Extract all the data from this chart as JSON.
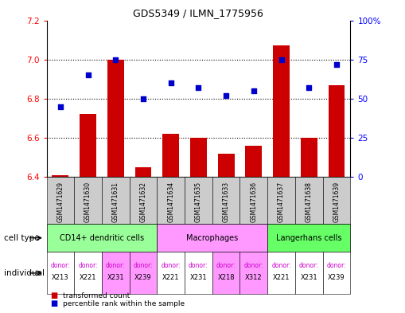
{
  "title": "GDS5349 / ILMN_1775956",
  "samples": [
    "GSM1471629",
    "GSM1471630",
    "GSM1471631",
    "GSM1471632",
    "GSM1471634",
    "GSM1471635",
    "GSM1471633",
    "GSM1471636",
    "GSM1471637",
    "GSM1471638",
    "GSM1471639"
  ],
  "bar_values": [
    6.41,
    6.72,
    7.0,
    6.45,
    6.62,
    6.6,
    6.52,
    6.56,
    7.07,
    6.6,
    6.87
  ],
  "dot_values": [
    45,
    65,
    75,
    50,
    60,
    57,
    52,
    55,
    75,
    57,
    72
  ],
  "ylim_left": [
    6.4,
    7.2
  ],
  "ylim_right": [
    0,
    100
  ],
  "yticks_left": [
    6.4,
    6.6,
    6.8,
    7.0,
    7.2
  ],
  "yticks_right": [
    0,
    25,
    50,
    75,
    100
  ],
  "ytick_labels_right": [
    "0",
    "25",
    "50",
    "75",
    "100%"
  ],
  "bar_color": "#cc0000",
  "dot_color": "#0000cc",
  "cell_types": [
    {
      "label": "CD14+ dendritic cells",
      "start": 0,
      "end": 4,
      "color": "#99ff99"
    },
    {
      "label": "Macrophages",
      "start": 4,
      "end": 8,
      "color": "#ff99ff"
    },
    {
      "label": "Langerhans cells",
      "start": 8,
      "end": 11,
      "color": "#66ff66"
    }
  ],
  "individuals": [
    {
      "donor": "X213",
      "color": "#ffffff"
    },
    {
      "donor": "X221",
      "color": "#ffffff"
    },
    {
      "donor": "X231",
      "color": "#ff99ff"
    },
    {
      "donor": "X239",
      "color": "#ff99ff"
    },
    {
      "donor": "X221",
      "color": "#ffffff"
    },
    {
      "donor": "X231",
      "color": "#ffffff"
    },
    {
      "donor": "X218",
      "color": "#ff99ff"
    },
    {
      "donor": "X312",
      "color": "#ff99ff"
    },
    {
      "donor": "X221",
      "color": "#ffffff"
    },
    {
      "donor": "X231",
      "color": "#ffffff"
    },
    {
      "donor": "X239",
      "color": "#ffffff"
    }
  ],
  "legend_bar_label": "transformed count",
  "legend_dot_label": "percentile rank within the sample",
  "cell_type_label": "cell type",
  "individual_label": "individual",
  "sample_label_bg": "#cccccc"
}
